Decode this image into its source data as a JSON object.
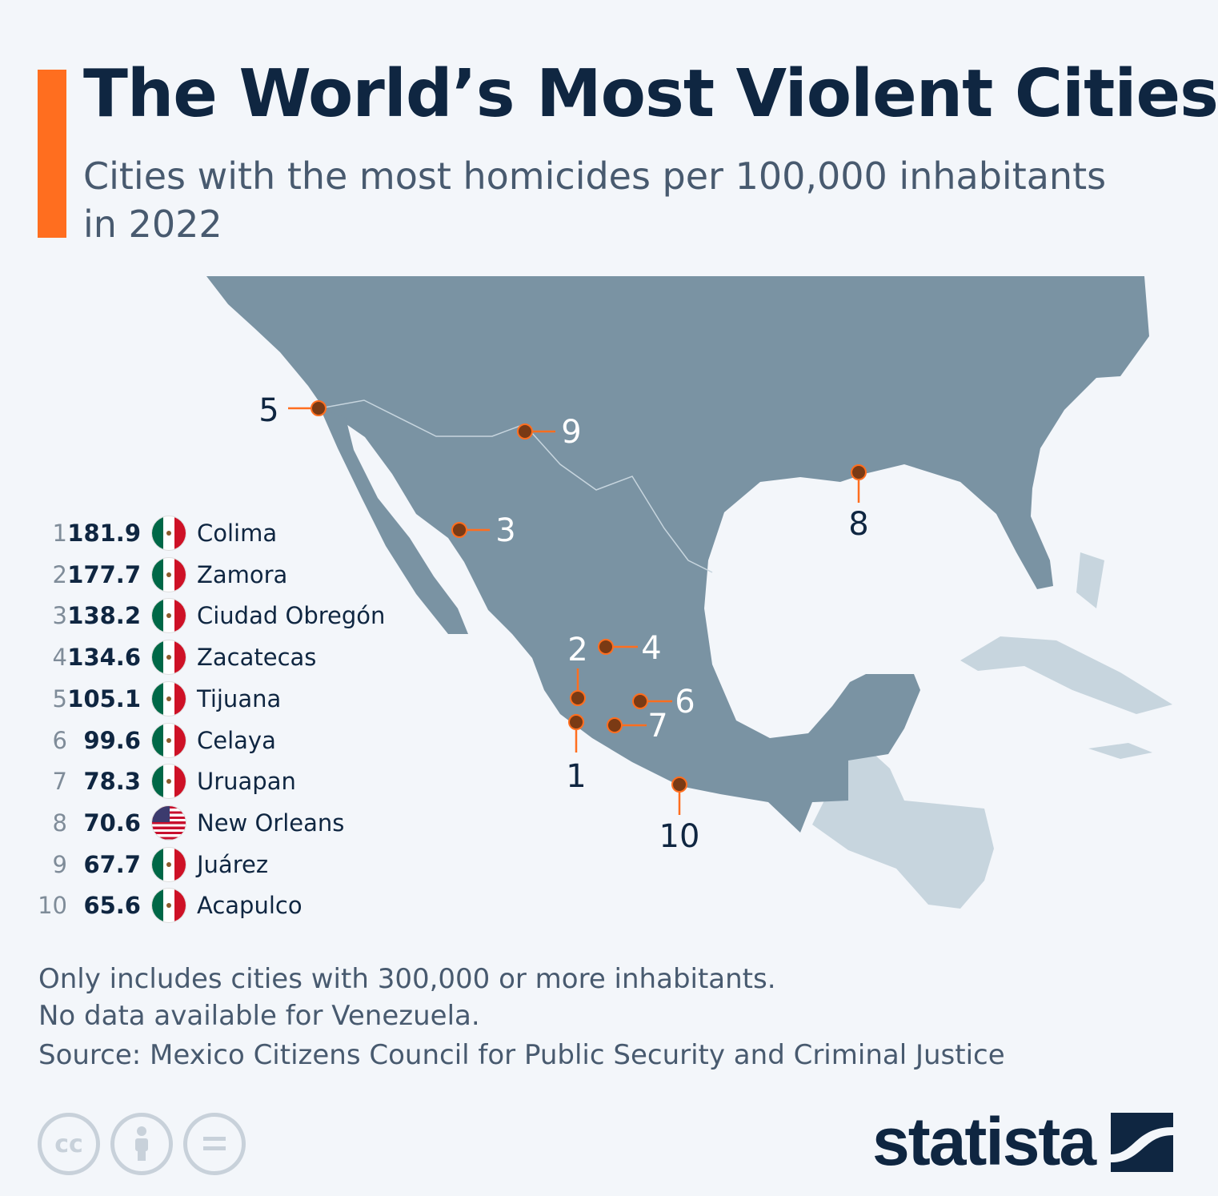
{
  "title": "The World’s Most Violent Cities",
  "subtitle": "Cities with the most homicides per 100,000 inhabitants in 2022",
  "colors": {
    "accent": "#ff6e1f",
    "land": "#7a93a3",
    "other_land": "#c7d5de",
    "marker": "#7a3a14",
    "marker_line": "#ff6e1f",
    "text": "#0f2641"
  },
  "cities": [
    {
      "rank": "1",
      "value": "181.9",
      "flag": "mexico-flag",
      "name": "Colima"
    },
    {
      "rank": "2",
      "value": "177.7",
      "flag": "mexico-flag",
      "name": "Zamora"
    },
    {
      "rank": "3",
      "value": "138.2",
      "flag": "mexico-flag",
      "name": "Ciudad Obregón"
    },
    {
      "rank": "4",
      "value": "134.6",
      "flag": "mexico-flag",
      "name": "Zacatecas"
    },
    {
      "rank": "5",
      "value": "105.1",
      "flag": "mexico-flag",
      "name": "Tijuana"
    },
    {
      "rank": "6",
      "value": "99.6",
      "flag": "mexico-flag",
      "name": "Celaya"
    },
    {
      "rank": "7",
      "value": "78.3",
      "flag": "mexico-flag",
      "name": "Uruapan"
    },
    {
      "rank": "8",
      "value": "70.6",
      "flag": "usa-flag",
      "name": "New Orleans"
    },
    {
      "rank": "9",
      "value": "67.7",
      "flag": "mexico-flag",
      "name": "Juárez"
    },
    {
      "rank": "10",
      "value": "65.6",
      "flag": "mexico-flag",
      "name": "Acapulco"
    }
  ],
  "notes": [
    "Only includes cities with 300,000 or more inhabitants.",
    "No data available for Venezuela."
  ],
  "source": "Source: Mexico Citizens Council for Public Security and Criminal Justice",
  "license_icons": [
    "cc-icon",
    "attribution-icon",
    "no-derivatives-icon"
  ],
  "logo": "statista"
}
